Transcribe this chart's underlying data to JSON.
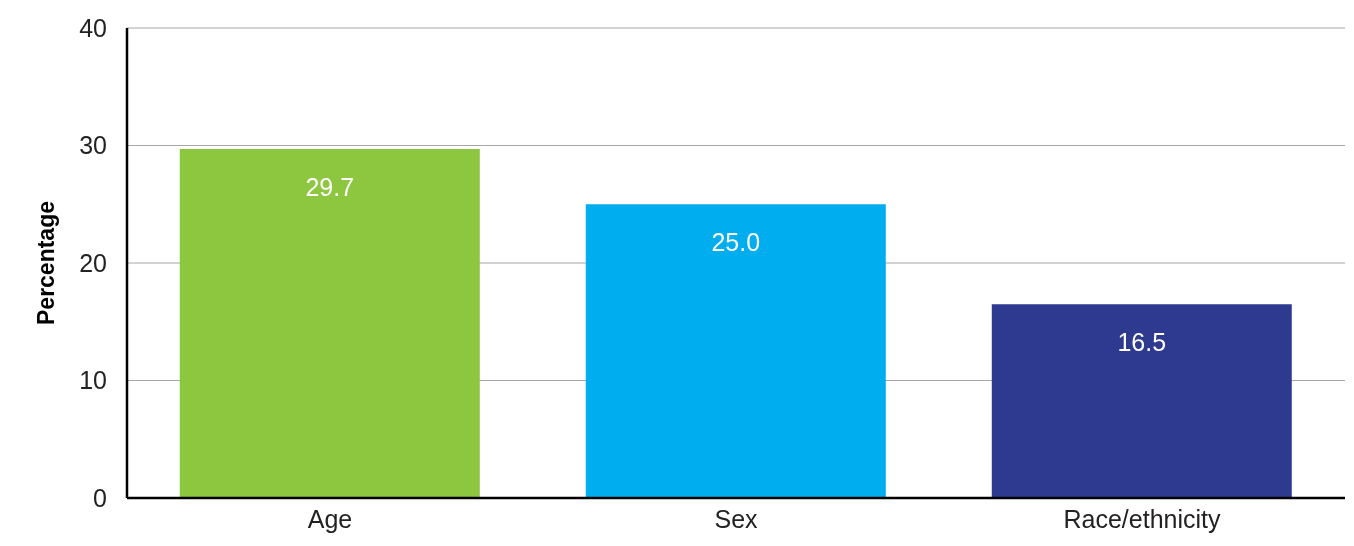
{
  "chart_data": {
    "type": "bar",
    "ylabel": "Percentage",
    "categories": [
      "Age",
      "Sex",
      "Race/ethnicity"
    ],
    "values": [
      29.7,
      25.0,
      16.5
    ],
    "colors": [
      "#8dc63f",
      "#00aeef",
      "#2e3a8f"
    ],
    "value_labels": [
      "29.7",
      "25.0",
      "16.5"
    ],
    "ylim": [
      0,
      40
    ],
    "yticks": [
      0,
      10,
      20,
      30,
      40
    ],
    "grid": "y"
  }
}
